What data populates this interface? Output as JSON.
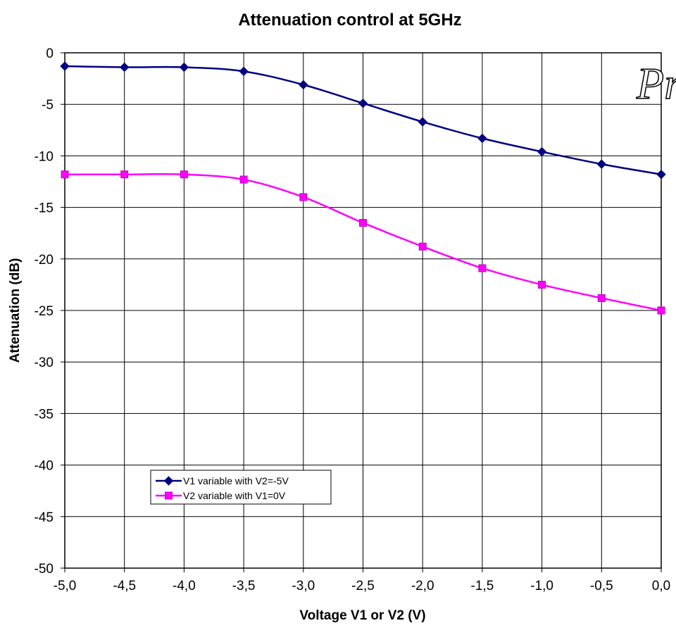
{
  "chart_data": {
    "type": "line",
    "title": "Attenuation control at 5GHz",
    "xlabel": "Voltage V1 or V2 (V)",
    "ylabel": "Attenuation (dB)",
    "xlim": [
      -5.0,
      0.0
    ],
    "ylim": [
      -50,
      0
    ],
    "x_ticks": [
      -5.0,
      -4.5,
      -4.0,
      -3.5,
      -3.0,
      -2.5,
      -2.0,
      -1.5,
      -1.0,
      -0.5,
      0.0
    ],
    "x_tick_labels": [
      "-5,0",
      "-4,5",
      "-4,0",
      "-3,5",
      "-3,0",
      "-2,5",
      "-2,0",
      "-1,5",
      "-1,0",
      "-0,5",
      "0,0"
    ],
    "y_ticks": [
      0,
      -5,
      -10,
      -15,
      -20,
      -25,
      -30,
      -35,
      -40,
      -45,
      -50
    ],
    "y_tick_labels": [
      "0",
      "-5",
      "-10",
      "-15",
      "-20",
      "-25",
      "-30",
      "-35",
      "-40",
      "-45",
      "-50"
    ],
    "grid": true,
    "legend_position": "lower-left",
    "series": [
      {
        "name": "V1 variable with V2=-5V",
        "color": "#000080",
        "marker": "diamond",
        "x": [
          -5.0,
          -4.5,
          -4.0,
          -3.5,
          -3.0,
          -2.5,
          -2.0,
          -1.5,
          -1.0,
          -0.5,
          0.0
        ],
        "y": [
          -1.3,
          -1.4,
          -1.4,
          -1.8,
          -3.1,
          -4.9,
          -6.7,
          -8.3,
          -9.6,
          -10.8,
          -11.8
        ]
      },
      {
        "name": "V2 variable with V1=0V",
        "color": "#ff00ff",
        "marker": "square",
        "x": [
          -5.0,
          -4.5,
          -4.0,
          -3.5,
          -3.0,
          -2.5,
          -2.0,
          -1.5,
          -1.0,
          -0.5,
          0.0
        ],
        "y": [
          -11.8,
          -11.8,
          -11.8,
          -12.3,
          -14.0,
          -16.5,
          -18.8,
          -20.9,
          -22.5,
          -23.8,
          -25.0
        ]
      }
    ],
    "watermark_text": "Pre"
  }
}
